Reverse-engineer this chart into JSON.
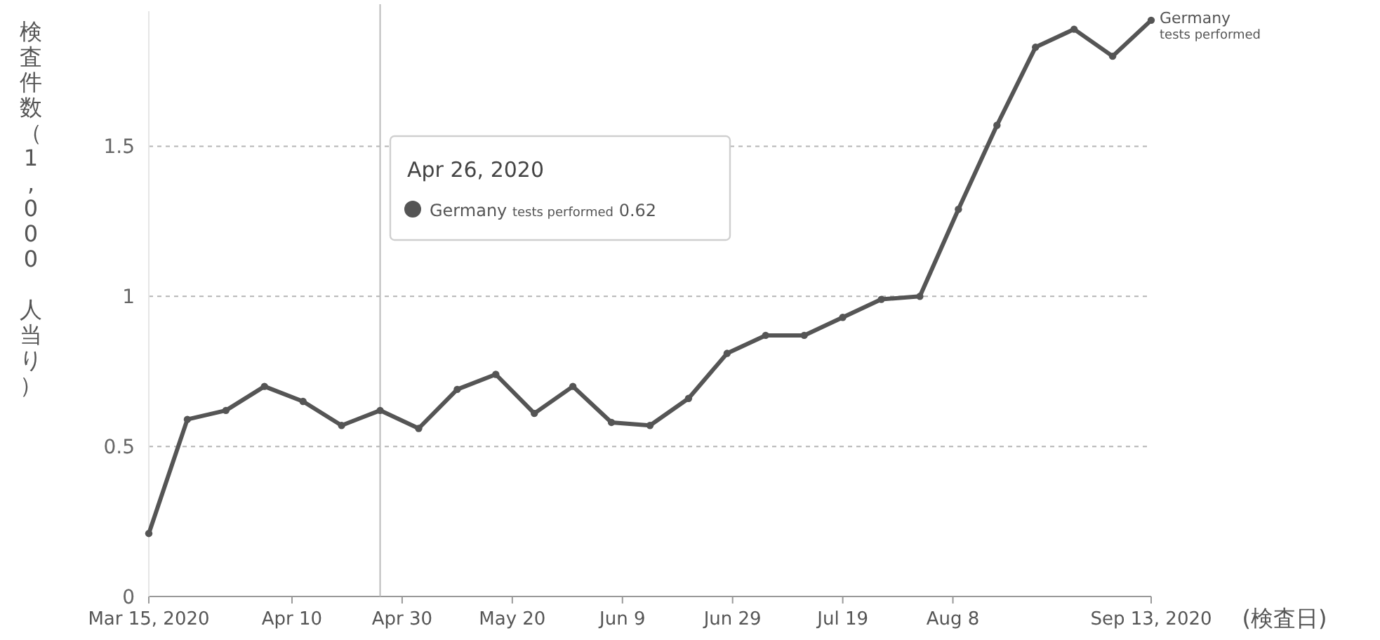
{
  "chart_data": {
    "type": "line",
    "xlabel": "(検査日)",
    "ylabel": "検査件数（1,000 人当り）",
    "x": [
      "2020-03-15",
      "2020-03-22",
      "2020-03-29",
      "2020-04-05",
      "2020-04-12",
      "2020-04-19",
      "2020-04-26",
      "2020-05-03",
      "2020-05-10",
      "2020-05-17",
      "2020-05-24",
      "2020-05-31",
      "2020-06-07",
      "2020-06-14",
      "2020-06-21",
      "2020-06-28",
      "2020-07-05",
      "2020-07-12",
      "2020-07-19",
      "2020-07-26",
      "2020-08-02",
      "2020-08-09",
      "2020-08-16",
      "2020-08-23",
      "2020-08-30",
      "2020-09-06",
      "2020-09-13"
    ],
    "series": [
      {
        "name": "Germany $_{tests performed}$",
        "color": "#555555",
        "values": [
          0.21,
          0.59,
          0.62,
          0.7,
          0.65,
          0.57,
          0.62,
          0.56,
          0.69,
          0.74,
          0.61,
          0.7,
          0.58,
          0.57,
          0.66,
          0.81,
          0.87,
          0.87,
          0.93,
          0.99,
          1.0,
          1.29,
          1.57,
          1.83,
          1.89,
          1.8,
          1.92
        ]
      }
    ],
    "xlim": [
      "2020-03-15",
      "2020-09-13"
    ],
    "xticks": [
      {
        "value": "2020-03-15",
        "label": "Mar 15, 2020"
      },
      {
        "value": "2020-04-10",
        "label": "Apr 10"
      },
      {
        "value": "2020-04-30",
        "label": "Apr 30"
      },
      {
        "value": "2020-05-20",
        "label": "May 20"
      },
      {
        "value": "2020-06-09",
        "label": "Jun 9"
      },
      {
        "value": "2020-06-29",
        "label": "Jun 29"
      },
      {
        "value": "2020-07-19",
        "label": "Jul 19"
      },
      {
        "value": "2020-08-08",
        "label": "Aug 8"
      },
      {
        "value": "2020-09-13",
        "label": "Sep 13, 2020"
      }
    ],
    "ylim": [
      0,
      1.95
    ],
    "yticks": [
      0,
      0.5,
      1,
      1.5
    ],
    "grid": "y",
    "legend": false,
    "marker": "circle",
    "line_style": "solid",
    "ref_lines": [
      {
        "axis": "x",
        "value": "2020-04-26",
        "color": "#bbbbbb"
      }
    ],
    "annotations": [
      "Apr 26, 2020",
      "Germany $_{tests performed}$ 0.62"
    ]
  }
}
